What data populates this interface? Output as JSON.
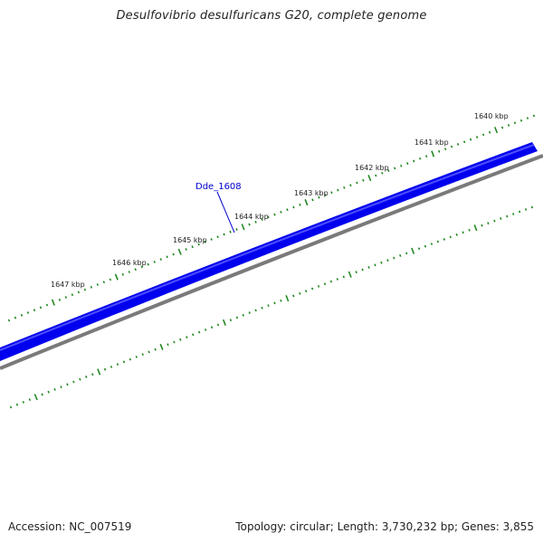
{
  "title": "Desulfovibrio desulfuricans G20, complete genome",
  "footer": {
    "accession_prefix": "Accession:",
    "accession": "NC_007519",
    "topology_prefix": "Topology:",
    "topology": "circular",
    "length_prefix": "Length:",
    "length": "3,730,232 bp",
    "genes_prefix": "Genes:",
    "genes": "3,855"
  },
  "map": {
    "tick_labels": [
      "1640 kbp",
      "1641 kbp",
      "1642 kbp",
      "1643 kbp",
      "1644 kbp",
      "1645 kbp",
      "1646 kbp",
      "1647 kbp"
    ],
    "gene_label": "Dde_1608",
    "colors": {
      "gene_fill": "#0000ee",
      "gene_highlight": "#4d4dff",
      "backbone": "#7a7a7a",
      "tick": "#228822",
      "gene_label": "#0000cc"
    }
  }
}
